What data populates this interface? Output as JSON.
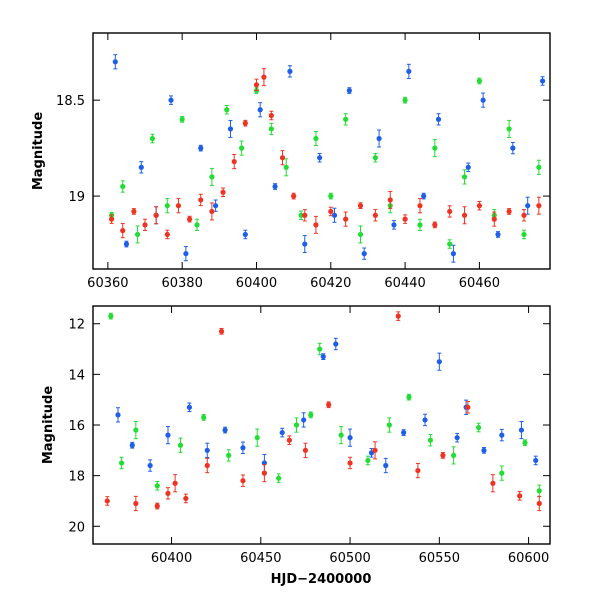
{
  "chart_data": [
    {
      "type": "scatter",
      "panel": "top",
      "title": "",
      "xlabel": "",
      "ylabel": "Magnitude",
      "xlim": [
        60356,
        60479
      ],
      "ylim": [
        19.38,
        18.15
      ],
      "y_inverted": true,
      "xticks": [
        60360,
        60380,
        60400,
        60420,
        60440,
        60460
      ],
      "xtick_labels": [
        "60360",
        "60380",
        "60400",
        "60420",
        "60440",
        "60460"
      ],
      "yticks": [
        18.5,
        19
      ],
      "ytick_labels": [
        "18.5",
        "19"
      ],
      "error_bars": true,
      "series": [
        {
          "color": "#22dd33",
          "points": [
            [
              60361,
              19.1
            ],
            [
              60364,
              18.95
            ],
            [
              60368,
              19.2
            ],
            [
              60372,
              18.7
            ],
            [
              60376,
              19.05
            ],
            [
              60380,
              18.6
            ],
            [
              60384,
              19.15
            ],
            [
              60388,
              18.9
            ],
            [
              60392,
              18.55
            ],
            [
              60396,
              18.75
            ],
            [
              60400,
              18.45
            ],
            [
              60404,
              18.65
            ],
            [
              60408,
              18.85
            ],
            [
              60412,
              19.1
            ],
            [
              60416,
              18.7
            ],
            [
              60420,
              19.0
            ],
            [
              60424,
              18.6
            ],
            [
              60428,
              19.2
            ],
            [
              60432,
              18.8
            ],
            [
              60436,
              19.05
            ],
            [
              60440,
              18.5
            ],
            [
              60444,
              19.15
            ],
            [
              60448,
              18.75
            ],
            [
              60452,
              19.25
            ],
            [
              60456,
              18.9
            ],
            [
              60460,
              18.4
            ],
            [
              60464,
              19.1
            ],
            [
              60468,
              18.65
            ],
            [
              60472,
              19.2
            ],
            [
              60476,
              18.85
            ]
          ]
        },
        {
          "color": "#1f5fe8",
          "points": [
            [
              60362,
              18.3
            ],
            [
              60365,
              19.25
            ],
            [
              60369,
              18.85
            ],
            [
              60373,
              19.1
            ],
            [
              60377,
              18.5
            ],
            [
              60381,
              19.3
            ],
            [
              60385,
              18.75
            ],
            [
              60389,
              19.05
            ],
            [
              60393,
              18.65
            ],
            [
              60397,
              19.2
            ],
            [
              60401,
              18.55
            ],
            [
              60405,
              18.95
            ],
            [
              60409,
              18.35
            ],
            [
              60413,
              19.25
            ],
            [
              60417,
              18.8
            ],
            [
              60421,
              19.1
            ],
            [
              60425,
              18.45
            ],
            [
              60429,
              19.3
            ],
            [
              60433,
              18.7
            ],
            [
              60437,
              19.15
            ],
            [
              60441,
              18.35
            ],
            [
              60445,
              19.0
            ],
            [
              60449,
              18.6
            ],
            [
              60453,
              19.3
            ],
            [
              60457,
              18.85
            ],
            [
              60461,
              18.5
            ],
            [
              60465,
              19.2
            ],
            [
              60469,
              18.75
            ],
            [
              60473,
              19.05
            ],
            [
              60477,
              18.4
            ]
          ]
        },
        {
          "color": "#ee3322",
          "points": [
            [
              60361,
              19.12
            ],
            [
              60364,
              19.18
            ],
            [
              60367,
              19.08
            ],
            [
              60370,
              19.15
            ],
            [
              60373,
              19.1
            ],
            [
              60376,
              19.2
            ],
            [
              60379,
              19.05
            ],
            [
              60382,
              19.12
            ],
            [
              60385,
              19.02
            ],
            [
              60388,
              19.08
            ],
            [
              60391,
              18.98
            ],
            [
              60394,
              18.82
            ],
            [
              60397,
              18.62
            ],
            [
              60400,
              18.42
            ],
            [
              60402,
              18.38
            ],
            [
              60404,
              18.58
            ],
            [
              60407,
              18.8
            ],
            [
              60410,
              19.0
            ],
            [
              60413,
              19.1
            ],
            [
              60416,
              19.15
            ],
            [
              60420,
              19.08
            ],
            [
              60424,
              19.12
            ],
            [
              60428,
              19.05
            ],
            [
              60432,
              19.1
            ],
            [
              60436,
              19.02
            ],
            [
              60440,
              19.12
            ],
            [
              60444,
              19.05
            ],
            [
              60448,
              19.15
            ],
            [
              60452,
              19.08
            ],
            [
              60456,
              19.1
            ],
            [
              60460,
              19.05
            ],
            [
              60464,
              19.12
            ],
            [
              60468,
              19.08
            ],
            [
              60472,
              19.1
            ],
            [
              60476,
              19.05
            ]
          ]
        }
      ]
    },
    {
      "type": "scatter",
      "panel": "bottom",
      "title": "",
      "xlabel": "HJD−2400000",
      "ylabel": "Magnitude",
      "xlim": [
        60356,
        60612
      ],
      "ylim": [
        20.7,
        11.3
      ],
      "y_inverted": true,
      "xticks": [
        60400,
        60450,
        60500,
        60550,
        60600
      ],
      "xtick_labels": [
        "60400",
        "60450",
        "60500",
        "60550",
        "60600"
      ],
      "yticks": [
        12,
        14,
        16,
        18,
        20
      ],
      "ytick_labels": [
        "12",
        "14",
        "16",
        "18",
        "20"
      ],
      "error_bars": true,
      "series": [
        {
          "color": "#22dd33",
          "points": [
            [
              60366,
              11.7
            ],
            [
              60372,
              17.5
            ],
            [
              60380,
              16.2
            ],
            [
              60392,
              18.4
            ],
            [
              60405,
              16.8
            ],
            [
              60418,
              15.7
            ],
            [
              60432,
              17.2
            ],
            [
              60448,
              16.5
            ],
            [
              60460,
              18.1
            ],
            [
              60470,
              16.0
            ],
            [
              60478,
              15.6
            ],
            [
              60483,
              13.0
            ],
            [
              60495,
              16.4
            ],
            [
              60510,
              17.4
            ],
            [
              60522,
              16.0
            ],
            [
              60533,
              14.9
            ],
            [
              60545,
              16.6
            ],
            [
              60558,
              17.2
            ],
            [
              60572,
              16.1
            ],
            [
              60585,
              17.9
            ],
            [
              60598,
              16.7
            ],
            [
              60606,
              18.6
            ]
          ]
        },
        {
          "color": "#1f5fe8",
          "points": [
            [
              60370,
              15.6
            ],
            [
              60378,
              16.8
            ],
            [
              60388,
              17.6
            ],
            [
              60398,
              16.4
            ],
            [
              60410,
              15.3
            ],
            [
              60420,
              17.0
            ],
            [
              60430,
              16.2
            ],
            [
              60440,
              16.9
            ],
            [
              60452,
              17.5
            ],
            [
              60462,
              16.3
            ],
            [
              60474,
              15.8
            ],
            [
              60485,
              13.3
            ],
            [
              60492,
              12.8
            ],
            [
              60500,
              16.5
            ],
            [
              60512,
              17.1
            ],
            [
              60520,
              17.6
            ],
            [
              60530,
              16.3
            ],
            [
              60542,
              15.8
            ],
            [
              60550,
              13.5
            ],
            [
              60560,
              16.5
            ],
            [
              60565,
              15.3
            ],
            [
              60575,
              17.0
            ],
            [
              60585,
              16.4
            ],
            [
              60596,
              16.2
            ],
            [
              60604,
              17.4
            ]
          ]
        },
        {
          "color": "#ee3322",
          "points": [
            [
              60364,
              19.0
            ],
            [
              60380,
              19.1
            ],
            [
              60392,
              19.2
            ],
            [
              60398,
              18.7
            ],
            [
              60402,
              18.3
            ],
            [
              60408,
              18.9
            ],
            [
              60420,
              17.6
            ],
            [
              60428,
              12.3
            ],
            [
              60440,
              18.2
            ],
            [
              60452,
              17.9
            ],
            [
              60466,
              16.6
            ],
            [
              60475,
              17.0
            ],
            [
              60488,
              15.2
            ],
            [
              60500,
              17.5
            ],
            [
              60514,
              17.0
            ],
            [
              60527,
              11.7
            ],
            [
              60538,
              17.8
            ],
            [
              60552,
              17.2
            ],
            [
              60566,
              15.3
            ],
            [
              60580,
              18.3
            ],
            [
              60595,
              18.8
            ],
            [
              60606,
              19.1
            ]
          ]
        }
      ]
    }
  ]
}
